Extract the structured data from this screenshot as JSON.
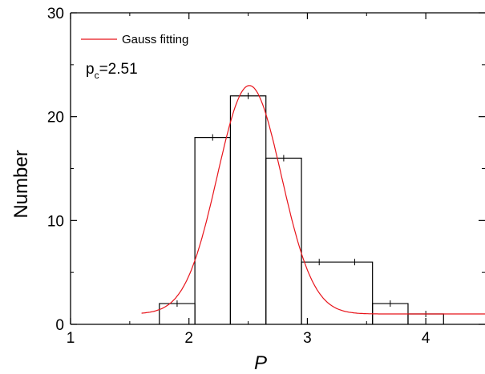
{
  "chart_data": {
    "type": "histogram",
    "xlabel": "P",
    "ylabel": "Number",
    "xlim": [
      1.0,
      4.5
    ],
    "ylim": [
      0,
      30
    ],
    "x_ticks": [
      "1",
      "2",
      "3",
      "4"
    ],
    "y_ticks": [
      "0",
      "10",
      "20",
      "30"
    ],
    "grid": false,
    "legend": {
      "position": "top-left",
      "entries": [
        {
          "label": "Gauss fitting",
          "color": "#e8141b"
        }
      ]
    },
    "annotation": {
      "base": "p",
      "subscript": "c",
      "suffix": "=2.51"
    },
    "series": [
      {
        "type": "step",
        "color": "#000000",
        "bins": [
          {
            "from": 1.75,
            "to": 2.05,
            "value": 2
          },
          {
            "from": 2.05,
            "to": 2.35,
            "value": 18
          },
          {
            "from": 2.35,
            "to": 2.65,
            "value": 22
          },
          {
            "from": 2.65,
            "to": 2.95,
            "value": 16
          },
          {
            "from": 2.95,
            "to": 3.55,
            "value": 6
          },
          {
            "from": 3.55,
            "to": 3.85,
            "value": 2
          },
          {
            "from": 3.85,
            "to": 4.15,
            "value": 1
          }
        ],
        "tick_marks": [
          {
            "x": 1.9,
            "y": 2
          },
          {
            "x": 2.2,
            "y": 18
          },
          {
            "x": 2.5,
            "y": 22
          },
          {
            "x": 2.8,
            "y": 16
          },
          {
            "x": 3.1,
            "y": 6
          },
          {
            "x": 3.4,
            "y": 6
          },
          {
            "x": 3.7,
            "y": 2
          },
          {
            "x": 4.0,
            "y": 1
          }
        ]
      },
      {
        "name": "Gauss fitting",
        "type": "line",
        "color": "#e8141b",
        "model": "gaussian",
        "params": {
          "y0": 1.0,
          "amplitude": 22.0,
          "center": 2.51,
          "sigma": 0.27
        },
        "x_range": [
          1.6,
          4.5
        ]
      }
    ]
  }
}
